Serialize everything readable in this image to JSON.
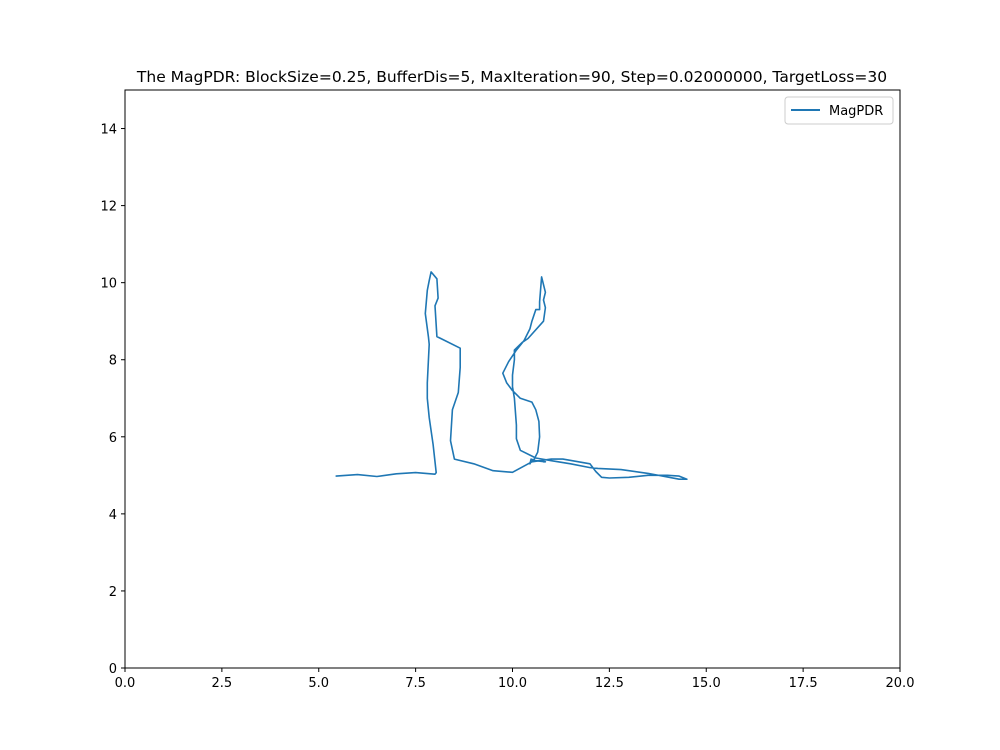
{
  "chart_data": {
    "type": "line",
    "title": "The MagPDR: BlockSize=0.25, BufferDis=5, MaxIteration=90, Step=0.02000000, TargetLoss=30",
    "xlabel": "",
    "ylabel": "",
    "xlim": [
      0,
      20
    ],
    "ylim": [
      0,
      15
    ],
    "x_ticks": [
      "0.0",
      "2.5",
      "5.0",
      "7.5",
      "10.0",
      "12.5",
      "15.0",
      "17.5",
      "20.0"
    ],
    "y_ticks": [
      "0",
      "2",
      "4",
      "6",
      "8",
      "10",
      "12",
      "14"
    ],
    "grid": false,
    "legend_position": "top-right",
    "series_color": "#1f77b4",
    "series": [
      {
        "name": "MagPDR",
        "x": [
          5.45,
          6.0,
          6.5,
          7.0,
          7.5,
          8.0,
          8.03,
          7.95,
          7.85,
          7.8,
          7.8,
          7.85,
          7.83,
          7.75,
          7.8,
          7.85,
          7.9,
          8.05,
          8.08,
          8.0,
          8.05,
          8.15,
          8.65,
          8.65,
          8.6,
          8.45,
          8.4,
          8.5,
          9.0,
          9.5,
          10.0,
          10.5,
          11.0,
          11.3,
          12.0,
          12.15,
          12.3,
          12.5,
          13.0,
          13.5,
          14.0,
          14.3,
          14.5,
          14.3,
          13.5,
          12.8,
          12.2,
          12.0,
          11.5,
          11.0,
          10.6,
          10.2,
          10.1,
          10.1,
          10.05,
          10.0,
          10.0,
          10.05,
          10.05,
          10.25,
          10.4,
          10.8,
          10.85,
          10.8,
          10.85,
          10.75,
          10.7,
          10.7,
          10.6,
          10.5,
          10.45,
          10.3,
          10.1,
          9.9,
          9.75,
          9.85,
          10.0,
          10.2,
          10.5,
          10.6,
          10.68,
          10.7,
          10.65,
          10.55,
          10.48,
          10.45,
          10.48,
          10.6,
          10.85,
          10.8,
          10.82
        ],
        "y": [
          4.98,
          5.02,
          4.97,
          5.04,
          5.07,
          5.03,
          5.07,
          5.8,
          6.5,
          7.0,
          7.4,
          8.4,
          8.6,
          9.2,
          9.8,
          10.05,
          10.28,
          10.1,
          9.6,
          9.4,
          8.6,
          8.55,
          8.3,
          7.8,
          7.15,
          6.7,
          5.9,
          5.42,
          5.3,
          5.12,
          5.08,
          5.35,
          5.42,
          5.42,
          5.3,
          5.1,
          4.95,
          4.93,
          4.95,
          5.0,
          5.0,
          4.98,
          4.9,
          4.9,
          5.05,
          5.15,
          5.18,
          5.2,
          5.3,
          5.38,
          5.45,
          5.65,
          5.95,
          6.3,
          7.0,
          7.3,
          7.6,
          8.0,
          8.25,
          8.45,
          8.55,
          9.0,
          9.35,
          9.55,
          9.75,
          10.15,
          9.5,
          9.3,
          9.3,
          9.0,
          8.8,
          8.5,
          8.25,
          7.95,
          7.65,
          7.4,
          7.2,
          7.0,
          6.9,
          6.7,
          6.4,
          6.0,
          5.6,
          5.4,
          5.35,
          5.3,
          5.42,
          5.38,
          5.35,
          5.35,
          5.35
        ]
      }
    ]
  }
}
